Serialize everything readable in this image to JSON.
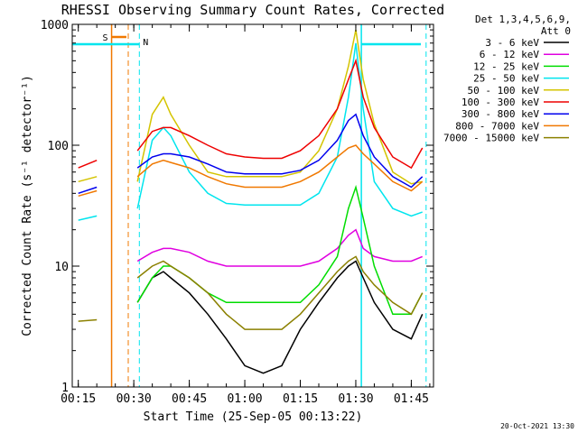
{
  "chart_data": {
    "type": "line",
    "title": "RHESSI Observing Summary Count Rates, Corrected",
    "xlabel": "Start Time (25-Sep-05 00:13:22)",
    "ylabel": "Corrected Count Rate (s⁻¹ detector⁻¹)",
    "y_scale": "log",
    "ylim": [
      1,
      1000
    ],
    "xlim": [
      "00:13:22",
      "01:51"
    ],
    "xticks": [
      "00:15",
      "00:30",
      "00:45",
      "01:00",
      "01:15",
      "01:30",
      "01:45"
    ],
    "yticks": [
      "1",
      "10",
      "100",
      "1000"
    ],
    "grid": false,
    "legend_header": [
      "Det 1,3,4,5,6,9,",
      "Att 0"
    ],
    "legend_position": "right",
    "timestamp": "20-Oct-2021 13:30",
    "x": [
      "00:15",
      "00:20",
      "00:25",
      "00:31",
      "00:35",
      "00:38",
      "00:40",
      "00:45",
      "00:50",
      "00:55",
      "01:00",
      "01:05",
      "01:10",
      "01:15",
      "01:20",
      "01:25",
      "01:28",
      "01:30",
      "01:32",
      "01:35",
      "01:40",
      "01:45",
      "01:48"
    ],
    "series": [
      {
        "name": "3 - 6 keV",
        "color": "#000000",
        "values": [
          null,
          null,
          null,
          5,
          8,
          9,
          8,
          6,
          4,
          2.5,
          1.5,
          1.3,
          1.5,
          3,
          5,
          8,
          10,
          11,
          8,
          5,
          3,
          2.5,
          4
        ]
      },
      {
        "name": "6 - 12 keV",
        "color": "#e000e0",
        "values": [
          null,
          null,
          null,
          11,
          13,
          14,
          14,
          13,
          11,
          10,
          10,
          10,
          10,
          10,
          11,
          14,
          18,
          20,
          14,
          12,
          11,
          11,
          12
        ]
      },
      {
        "name": "12 - 25 keV",
        "color": "#00dd00",
        "values": [
          null,
          null,
          null,
          5,
          8,
          10,
          10,
          8,
          6,
          5,
          5,
          5,
          5,
          5,
          7,
          12,
          30,
          45,
          25,
          10,
          4,
          4,
          6
        ]
      },
      {
        "name": "25 - 50 keV",
        "color": "#00e5ee",
        "values": [
          24,
          26,
          null,
          30,
          110,
          140,
          120,
          60,
          40,
          33,
          32,
          32,
          32,
          32,
          40,
          80,
          250,
          700,
          200,
          50,
          30,
          26,
          28
        ]
      },
      {
        "name": "50 - 100 keV",
        "color": "#d4c400",
        "values": [
          50,
          55,
          null,
          50,
          180,
          250,
          180,
          100,
          60,
          55,
          55,
          55,
          55,
          60,
          90,
          200,
          450,
          900,
          350,
          150,
          60,
          48,
          50
        ]
      },
      {
        "name": "100 - 300 keV",
        "color": "#ee0000",
        "values": [
          65,
          75,
          null,
          90,
          130,
          140,
          140,
          120,
          100,
          85,
          80,
          78,
          78,
          90,
          120,
          200,
          350,
          500,
          250,
          140,
          80,
          65,
          95
        ]
      },
      {
        "name": "300 - 800 keV",
        "color": "#0000ee",
        "values": [
          40,
          45,
          null,
          65,
          80,
          85,
          85,
          80,
          70,
          60,
          58,
          58,
          58,
          62,
          75,
          110,
          160,
          180,
          120,
          80,
          55,
          45,
          55
        ]
      },
      {
        "name": "800 - 7000 keV",
        "color": "#f07800",
        "values": [
          38,
          42,
          null,
          55,
          70,
          75,
          72,
          65,
          55,
          48,
          45,
          45,
          45,
          50,
          60,
          80,
          95,
          100,
          85,
          70,
          50,
          42,
          50
        ]
      },
      {
        "name": "7000 - 15000 keV",
        "color": "#8b8000",
        "values": [
          3.5,
          3.6,
          null,
          8,
          10,
          11,
          10,
          8,
          6,
          4,
          3,
          3,
          3,
          4,
          6,
          9,
          11,
          12,
          9,
          7,
          5,
          4,
          6
        ]
      }
    ],
    "markers": [
      {
        "label": "S",
        "color": "#f07800"
      },
      {
        "label": "N",
        "color": "#00e5ee"
      }
    ]
  }
}
